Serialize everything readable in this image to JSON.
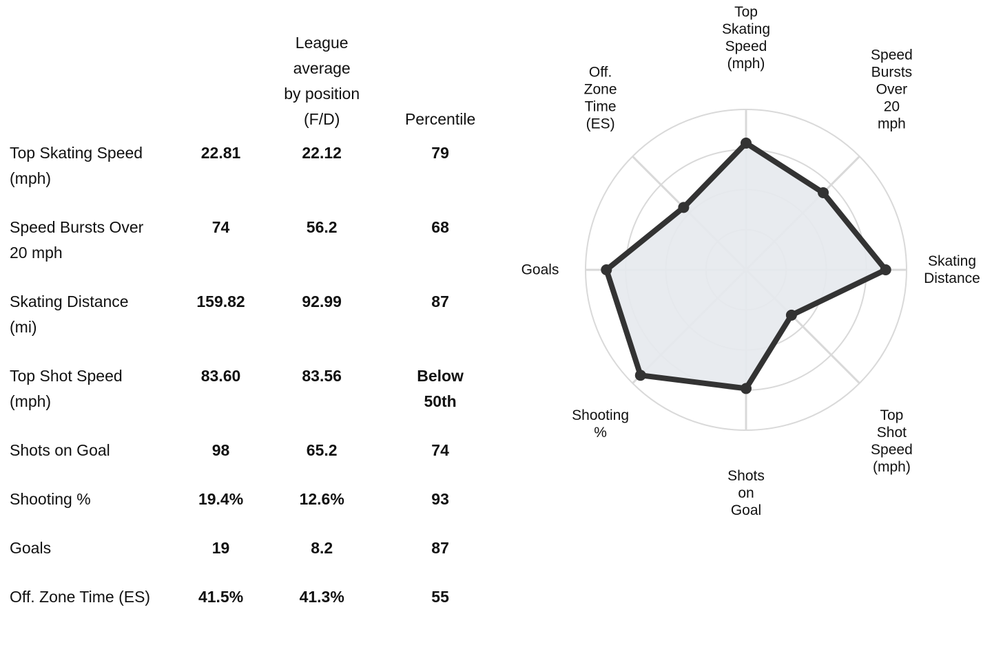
{
  "table": {
    "headers": {
      "metric": "",
      "player": "",
      "league_lines": [
        "League",
        "average",
        "by position",
        "(F/D)"
      ],
      "percentile": "Percentile"
    },
    "rows": [
      {
        "metric_lines": [
          "Top Skating Speed",
          "(mph)"
        ],
        "player": "22.81",
        "league": "22.12",
        "percentile_lines": [
          "79"
        ]
      },
      {
        "metric_lines": [
          "Speed Bursts Over",
          "20 mph"
        ],
        "player": "74",
        "league": "56.2",
        "percentile_lines": [
          "68"
        ]
      },
      {
        "metric_lines": [
          "Skating Distance",
          "(mi)"
        ],
        "player": "159.82",
        "league": "92.99",
        "percentile_lines": [
          "87"
        ]
      },
      {
        "metric_lines": [
          "Top Shot Speed",
          "(mph)"
        ],
        "player": "83.60",
        "league": "83.56",
        "percentile_lines": [
          "Below",
          "50th"
        ]
      },
      {
        "metric_lines": [
          "Shots on Goal"
        ],
        "player": "98",
        "league": "65.2",
        "percentile_lines": [
          "74"
        ]
      },
      {
        "metric_lines": [
          "Shooting %"
        ],
        "player": "19.4%",
        "league": "12.6%",
        "percentile_lines": [
          "93"
        ]
      },
      {
        "metric_lines": [
          "Goals"
        ],
        "player": "19",
        "league": "8.2",
        "percentile_lines": [
          "87"
        ]
      },
      {
        "metric_lines": [
          "Off. Zone Time (ES)"
        ],
        "player": "41.5%",
        "league": "41.3%",
        "percentile_lines": [
          "55"
        ]
      }
    ]
  },
  "chart_data": {
    "type": "radar",
    "title": "",
    "axes": [
      {
        "label_lines": [
          "Top",
          "Skating",
          "Speed",
          "(mph)"
        ],
        "value": 79
      },
      {
        "label_lines": [
          "Speed",
          "Bursts",
          "Over",
          "20",
          "mph"
        ],
        "value": 68
      },
      {
        "label_lines": [
          "Skating",
          "Distance"
        ],
        "value": 87
      },
      {
        "label_lines": [
          "Top",
          "Shot",
          "Speed",
          "(mph)"
        ],
        "value": 40
      },
      {
        "label_lines": [
          "Shots",
          "on",
          "Goal"
        ],
        "value": 74
      },
      {
        "label_lines": [
          "Shooting",
          "%"
        ],
        "value": 93
      },
      {
        "label_lines": [
          "Goals"
        ],
        "value": 87
      },
      {
        "label_lines": [
          "Off.",
          "Zone",
          "Time",
          "(ES)"
        ],
        "value": 55
      }
    ],
    "rlim": [
      0,
      100
    ],
    "grid_rings": [
      25,
      50,
      75,
      100
    ],
    "grid": true,
    "colors": {
      "line": "#333333",
      "fill": "#e5e9ed",
      "grid": "#d9d9d9",
      "marker": "#333333"
    }
  }
}
